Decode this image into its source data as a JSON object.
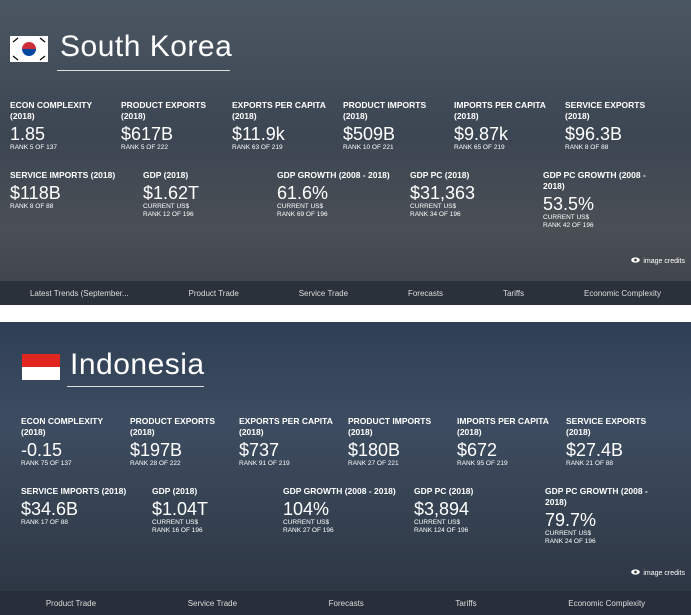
{
  "panels": [
    {
      "country": "South Korea",
      "stats": [
        {
          "label": "ECON COMPLEXITY (2018)",
          "value": "1.85",
          "notes": [
            "RANK 5 OF 137"
          ]
        },
        {
          "label": "PRODUCT EXPORTS (2018)",
          "value": "$617B",
          "notes": [
            "RANK 5 OF 222"
          ]
        },
        {
          "label": "EXPORTS PER CAPITA (2018)",
          "value": "$11.9k",
          "notes": [
            "RANK 63 OF 219"
          ]
        },
        {
          "label": "PRODUCT IMPORTS (2018)",
          "value": "$509B",
          "notes": [
            "RANK 10 OF 221"
          ]
        },
        {
          "label": "IMPORTS PER CAPITA (2018)",
          "value": "$9.87k",
          "notes": [
            "RANK 65 OF 219"
          ]
        },
        {
          "label": "SERVICE EXPORTS (2018)",
          "value": "$96.3B",
          "notes": [
            "RANK 8 OF 88"
          ]
        },
        {
          "label": "SERVICE IMPORTS (2018)",
          "value": "$118B",
          "notes": [
            "RANK 8 OF 88"
          ]
        },
        {
          "label": "GDP (2018)",
          "value": "$1.62T",
          "notes": [
            "CURRENT US$",
            "RANK 12 OF 196"
          ]
        },
        {
          "label": "GDP GROWTH (2008 - 2018)",
          "value": "61.6%",
          "notes": [
            "CURRENT US$",
            "RANK 69 OF 196"
          ]
        },
        {
          "label": "GDP PC (2018)",
          "value": "$31,363",
          "notes": [
            "CURRENT US$",
            "RANK 34 OF 196"
          ]
        },
        {
          "label": "GDP PC GROWTH (2008 - 2018)",
          "value": "53.5%",
          "notes": [
            "CURRENT US$",
            "RANK 42 OF 196"
          ]
        }
      ],
      "image_credits": "image credits",
      "nav": [
        "Latest Trends (September...",
        "Product Trade",
        "Service Trade",
        "Forecasts",
        "Tariffs",
        "Economic Complexity"
      ]
    },
    {
      "country": "Indonesia",
      "stats": [
        {
          "label": "ECON COMPLEXITY (2018)",
          "value": "-0.15",
          "notes": [
            "RANK 75 OF 137"
          ]
        },
        {
          "label": "PRODUCT EXPORTS (2018)",
          "value": "$197B",
          "notes": [
            "RANK 28 OF 222"
          ]
        },
        {
          "label": "EXPORTS PER CAPITA (2018)",
          "value": "$737",
          "notes": [
            "RANK 91 OF 219"
          ]
        },
        {
          "label": "PRODUCT IMPORTS (2018)",
          "value": "$180B",
          "notes": [
            "RANK 27 OF 221"
          ]
        },
        {
          "label": "IMPORTS PER CAPITA (2018)",
          "value": "$672",
          "notes": [
            "RANK 95 OF 219"
          ]
        },
        {
          "label": "SERVICE EXPORTS (2018)",
          "value": "$27.4B",
          "notes": [
            "RANK 21 OF 88"
          ]
        },
        {
          "label": "SERVICE IMPORTS (2018)",
          "value": "$34.6B",
          "notes": [
            "RANK 17 OF 88"
          ]
        },
        {
          "label": "GDP (2018)",
          "value": "$1.04T",
          "notes": [
            "CURRENT US$",
            "RANK 16 OF 196"
          ]
        },
        {
          "label": "GDP GROWTH (2008 - 2018)",
          "value": "104%",
          "notes": [
            "CURRENT US$",
            "RANK 27 OF 196"
          ]
        },
        {
          "label": "GDP PC (2018)",
          "value": "$3,894",
          "notes": [
            "CURRENT US$",
            "RANK 124 OF 196"
          ]
        },
        {
          "label": "GDP PC GROWTH (2008 - 2018)",
          "value": "79.7%",
          "notes": [
            "CURRENT US$",
            "RANK 24 OF 196"
          ]
        }
      ],
      "image_credits": "image credits",
      "nav": [
        "Product Trade",
        "Service Trade",
        "Forecasts",
        "Tariffs",
        "Economic Complexity"
      ]
    }
  ]
}
